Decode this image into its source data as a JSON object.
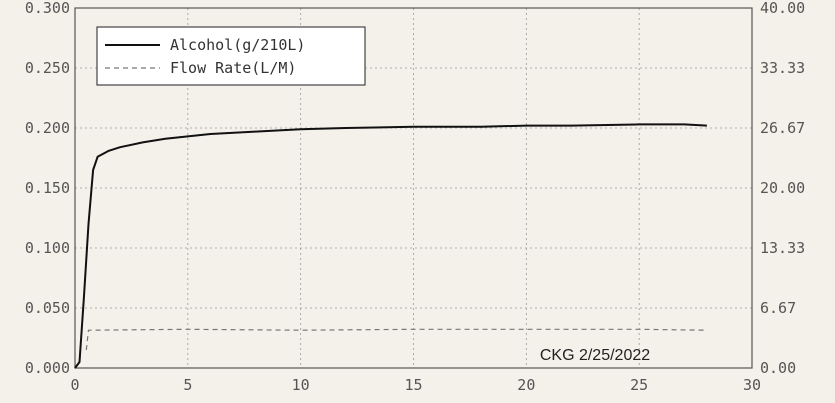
{
  "chart_data": {
    "type": "line",
    "title": "",
    "xlabel": "",
    "ylabel": "",
    "y2label": "",
    "xlim": [
      0,
      30
    ],
    "ylim": [
      0,
      0.3
    ],
    "y2lim": [
      0,
      40
    ],
    "x_ticks": [
      "0",
      "5",
      "10",
      "15",
      "20",
      "25",
      "30"
    ],
    "y_ticks": [
      "0.000",
      "0.050",
      "0.100",
      "0.150",
      "0.200",
      "0.250",
      "0.300"
    ],
    "y2_ticks": [
      "0.00",
      "6.67",
      "13.33",
      "20.00",
      "26.67",
      "33.33",
      "40.00"
    ],
    "grid": true,
    "legend_position": "top-left",
    "series": [
      {
        "name": "Alcohol(g/210L)",
        "axis": "left",
        "style": "solid",
        "color": "#111111",
        "x": [
          0,
          0.2,
          0.4,
          0.6,
          0.8,
          1,
          1.5,
          2,
          3,
          4,
          5,
          6,
          8,
          10,
          12,
          15,
          18,
          20,
          22,
          25,
          27,
          28
        ],
        "y": [
          0,
          0.005,
          0.06,
          0.12,
          0.165,
          0.176,
          0.181,
          0.184,
          0.188,
          0.191,
          0.193,
          0.195,
          0.197,
          0.199,
          0.2,
          0.201,
          0.201,
          0.202,
          0.202,
          0.203,
          0.203,
          0.202
        ]
      },
      {
        "name": "Flow Rate(L/M)",
        "axis": "right",
        "style": "dashed",
        "color": "#777777",
        "x": [
          0.5,
          0.6,
          5,
          10,
          15,
          20,
          25,
          28
        ],
        "y": [
          2.0,
          4.2,
          4.3,
          4.2,
          4.3,
          4.3,
          4.3,
          4.2
        ]
      }
    ],
    "annotations": [
      "CKG 2/25/2022"
    ]
  }
}
